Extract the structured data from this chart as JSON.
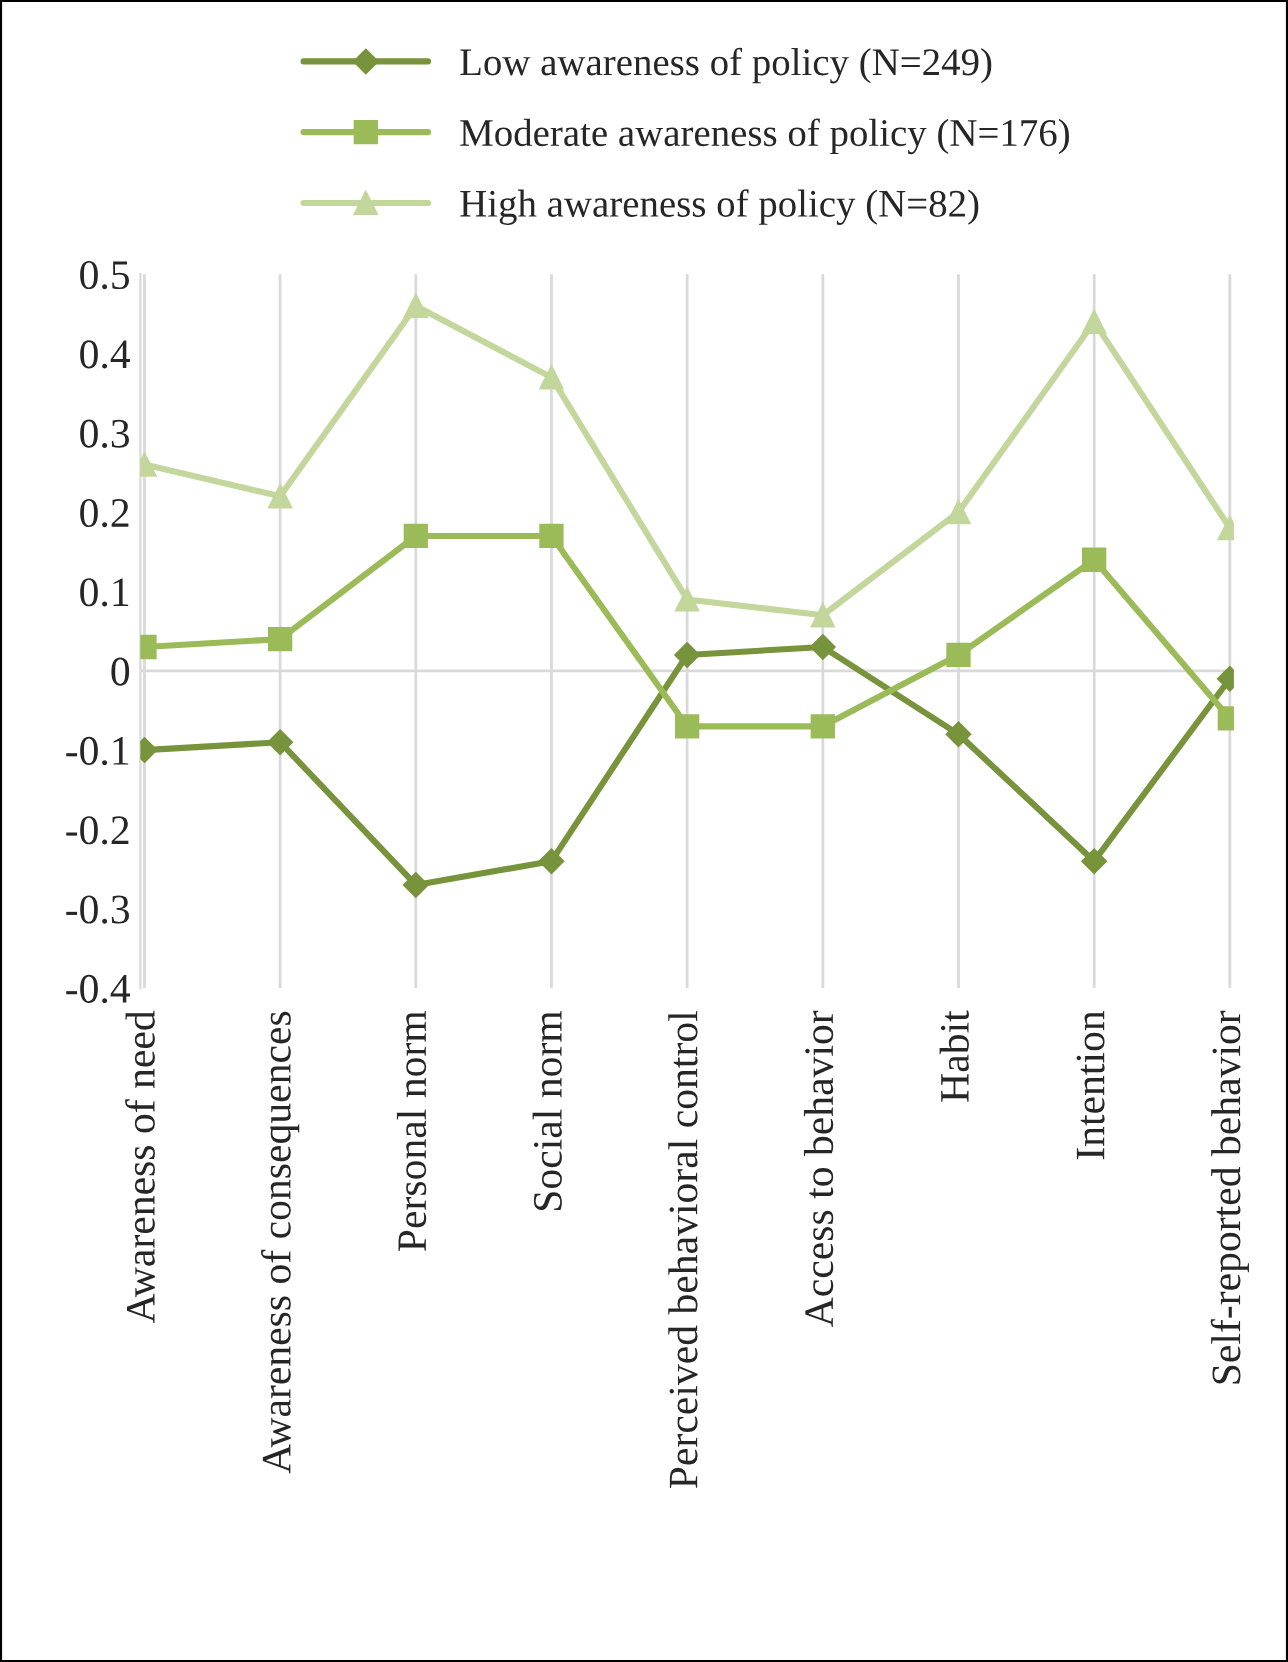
{
  "chart_data": {
    "type": "line",
    "categories": [
      "Awareness of need",
      "Awareness of consequences",
      "Personal norm",
      "Social norm",
      "Perceived behavioral control",
      "Access to behavior",
      "Habit",
      "Intention",
      "Self-reported behavior"
    ],
    "series": [
      {
        "name": "Low awareness of policy (N=249)",
        "color": "#77933c",
        "marker": "diamond",
        "values": [
          -0.1,
          -0.09,
          -0.27,
          -0.24,
          0.02,
          0.03,
          -0.08,
          -0.24,
          -0.01
        ]
      },
      {
        "name": "Moderate awareness of policy (N=176)",
        "color": "#9bbb59",
        "marker": "square",
        "values": [
          0.03,
          0.04,
          0.17,
          0.17,
          -0.07,
          -0.07,
          0.02,
          0.14,
          -0.06
        ]
      },
      {
        "name": "High awareness of policy (N=82)",
        "color": "#c3d69b",
        "marker": "triangle",
        "values": [
          0.26,
          0.22,
          0.46,
          0.37,
          0.09,
          0.07,
          0.2,
          0.44,
          0.18
        ]
      }
    ],
    "ylim": [
      -0.4,
      0.5
    ],
    "yticks": [
      -0.4,
      -0.3,
      -0.2,
      -0.1,
      0,
      0.1,
      0.2,
      0.3,
      0.4,
      0.5
    ],
    "ref_lines": [
      {
        "axis": "y",
        "value": 0,
        "color": "#d9d9d9"
      }
    ],
    "grid": "x",
    "legend": "top",
    "line_style": "solid"
  }
}
